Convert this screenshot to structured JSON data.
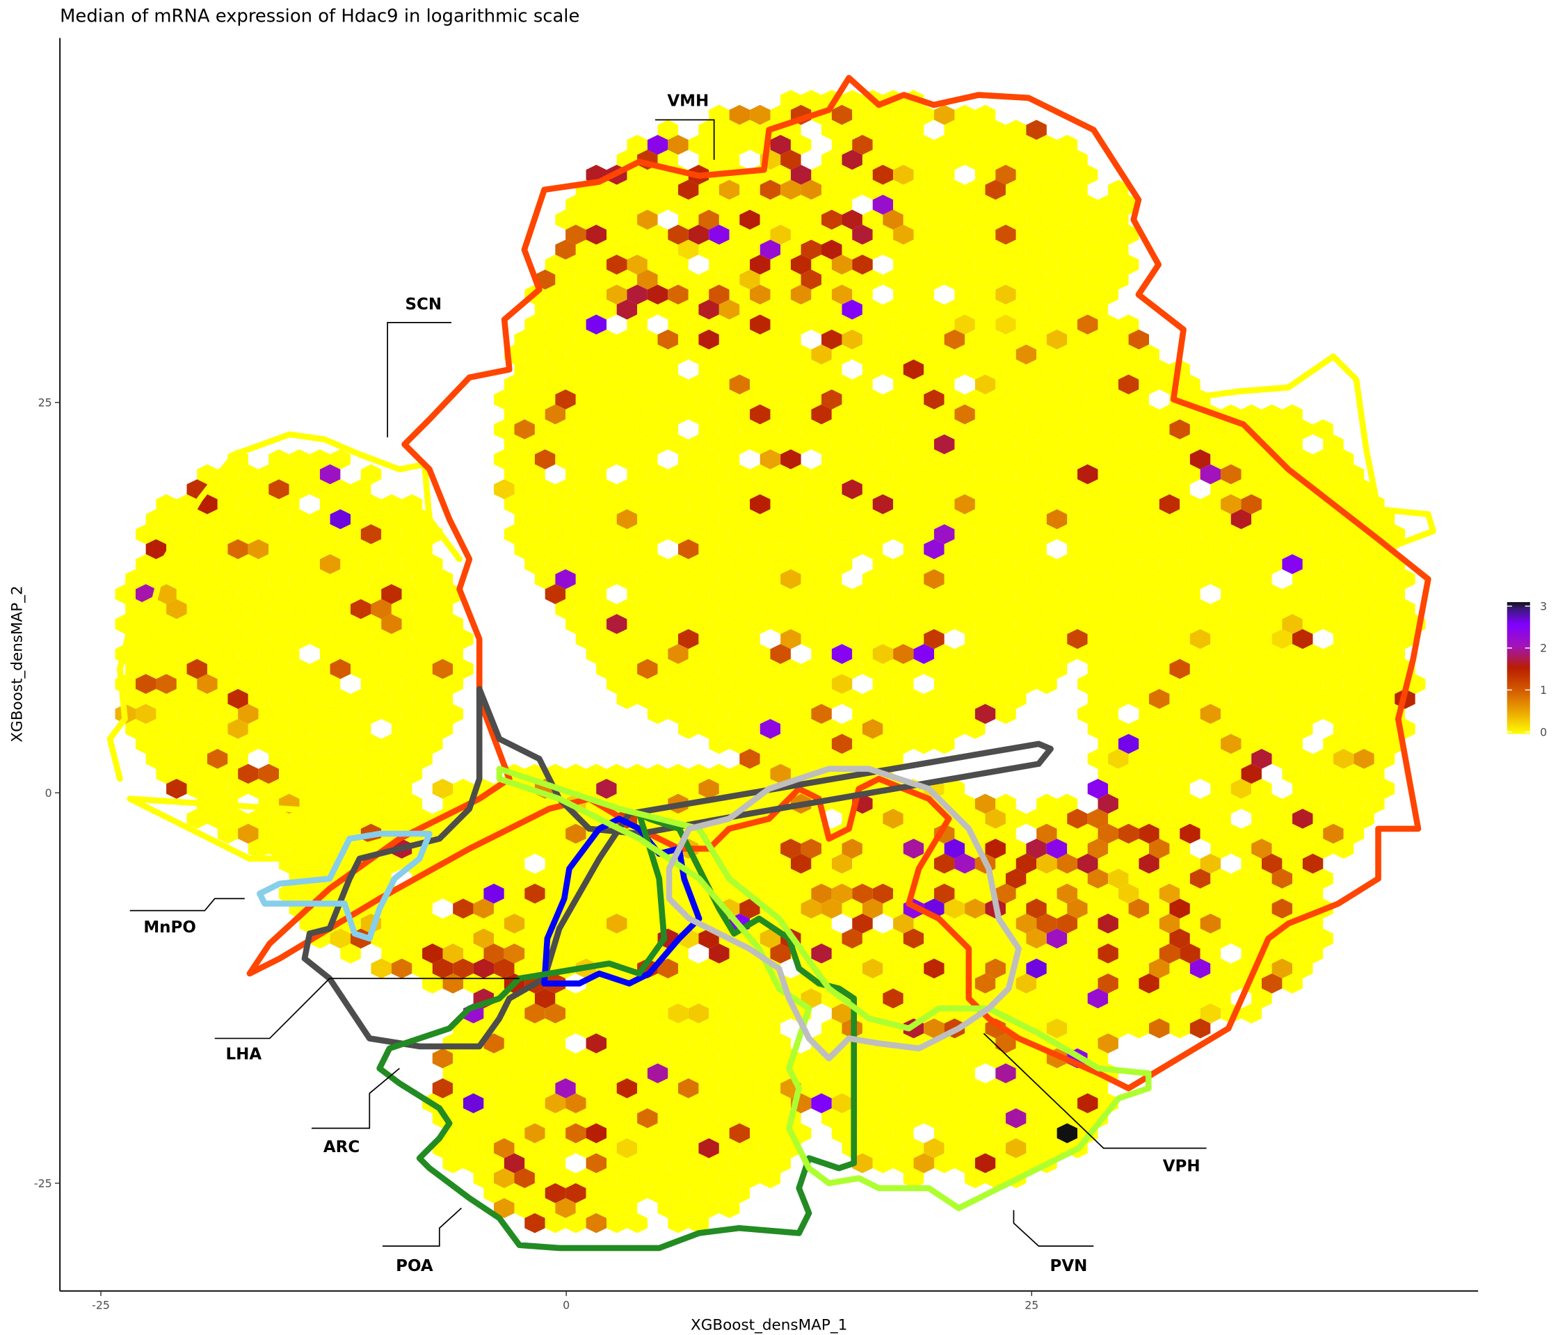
{
  "chart_data": {
    "type": "heatmap",
    "subtype": "hexbin",
    "title": "Median of mRNA expression of Hdac9 in logarithmic scale",
    "xlabel": "XGBoost_densMAP_1",
    "ylabel": "XGBoost_densMAP_2",
    "xlim": [
      -27.2,
      49
    ],
    "ylim": [
      -32,
      48
    ],
    "x_ticks": [
      {
        "value": -25,
        "label": "-25"
      },
      {
        "value": 0,
        "label": "0"
      },
      {
        "value": 25,
        "label": "25"
      }
    ],
    "y_ticks": [
      {
        "value": 25,
        "label": "25"
      },
      {
        "value": 0,
        "label": "0"
      },
      {
        "value": -25,
        "label": "-25"
      }
    ],
    "grid": false,
    "legend": {
      "type": "colorbar",
      "placement": "right",
      "range": [
        0,
        3
      ],
      "ticks": [
        {
          "value": 3,
          "label": "3"
        },
        {
          "value": 2,
          "label": "2"
        },
        {
          "value": 1,
          "label": "1"
        },
        {
          "value": 0,
          "label": "0"
        }
      ],
      "color_stops": [
        {
          "value": 0,
          "color": "#ffff00"
        },
        {
          "value": 0.5,
          "color": "#eba600"
        },
        {
          "value": 1,
          "color": "#d45a00"
        },
        {
          "value": 1.5,
          "color": "#b81e00"
        },
        {
          "value": 2,
          "color": "#a314b8"
        },
        {
          "value": 2.5,
          "color": "#7f00ff"
        },
        {
          "value": 2.85,
          "color": "#3a1a7a"
        },
        {
          "value": 3,
          "color": "#111111"
        }
      ]
    },
    "bins_summary": {
      "dominant_value": 0,
      "max_value": 3,
      "max_bin_location": [
        27,
        -21.5
      ]
    },
    "regions": [
      {
        "label": "VMH",
        "color": "#ff4500"
      },
      {
        "label": "SCN",
        "color": "#ffff00"
      },
      {
        "label": "MnPO",
        "color": "#87ceeb"
      },
      {
        "label": "LHA",
        "color": "#4d4d4d"
      },
      {
        "label": "ARC",
        "color": "#0000ff"
      },
      {
        "label": "POA",
        "color": "#228b22"
      },
      {
        "label": "PVN",
        "color": "#adff2f"
      },
      {
        "label": "VPH",
        "color": "#bebebe"
      }
    ]
  }
}
